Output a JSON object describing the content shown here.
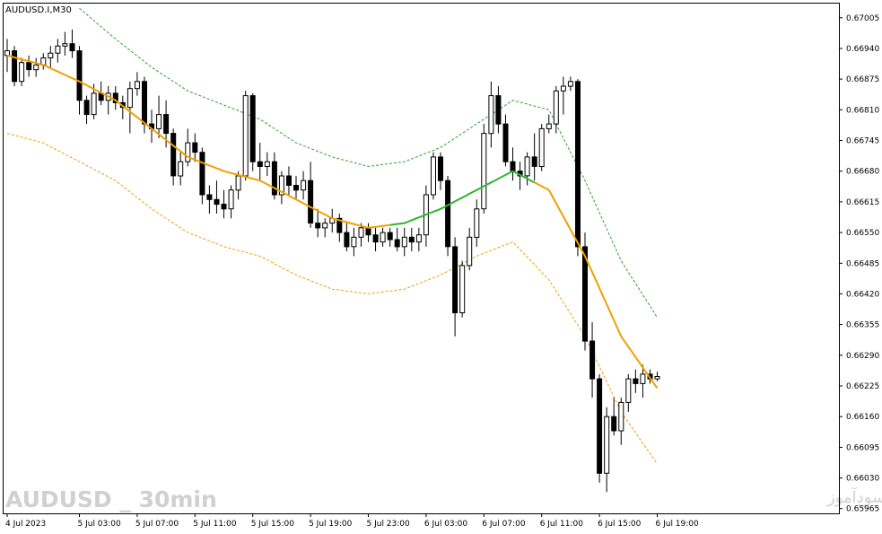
{
  "chart_data": {
    "type": "candlestick",
    "title": "AUDUSD.I,M30",
    "symbol": "AUDUSD.I",
    "timeframe": "M30",
    "ylim": [
      0.65955,
      0.67035
    ],
    "grid": false,
    "y_ticks": [
      "0.67005",
      "0.66940",
      "0.66875",
      "0.66810",
      "0.66745",
      "0.66680",
      "0.66615",
      "0.66550",
      "0.66485",
      "0.66420",
      "0.66355",
      "0.66290",
      "0.66225",
      "0.66160",
      "0.66095",
      "0.66030",
      "0.65965"
    ],
    "x_ticks": [
      {
        "label": "4 Jul 2023",
        "index": 0
      },
      {
        "label": "5 Jul 03:00",
        "index": 10
      },
      {
        "label": "5 Jul 07:00",
        "index": 18
      },
      {
        "label": "5 Jul 11:00",
        "index": 26
      },
      {
        "label": "5 Jul 15:00",
        "index": 34
      },
      {
        "label": "5 Jul 19:00",
        "index": 42
      },
      {
        "label": "5 Jul 23:00",
        "index": 50
      },
      {
        "label": "6 Jul 03:00",
        "index": 58
      },
      {
        "label": "6 Jul 07:00",
        "index": 66
      },
      {
        "label": "6 Jul 11:00",
        "index": 74
      },
      {
        "label": "6 Jul 15:00",
        "index": 82
      },
      {
        "label": "6 Jul 19:00",
        "index": 90
      }
    ],
    "candles": [
      [
        0.66925,
        0.6696,
        0.6689,
        0.66935
      ],
      [
        0.66935,
        0.66945,
        0.6686,
        0.6687
      ],
      [
        0.6687,
        0.6692,
        0.6686,
        0.6691
      ],
      [
        0.6691,
        0.66925,
        0.6688,
        0.66895
      ],
      [
        0.66895,
        0.6692,
        0.6688,
        0.66905
      ],
      [
        0.66905,
        0.6693,
        0.66895,
        0.6692
      ],
      [
        0.6692,
        0.66945,
        0.669,
        0.6693
      ],
      [
        0.6693,
        0.6696,
        0.6691,
        0.66945
      ],
      [
        0.66945,
        0.66975,
        0.66925,
        0.6695
      ],
      [
        0.6695,
        0.6698,
        0.6692,
        0.66935
      ],
      [
        0.66935,
        0.66945,
        0.668,
        0.6683
      ],
      [
        0.6683,
        0.6684,
        0.6678,
        0.668
      ],
      [
        0.668,
        0.66865,
        0.6679,
        0.66845
      ],
      [
        0.66845,
        0.6687,
        0.6682,
        0.6683
      ],
      [
        0.6683,
        0.6686,
        0.668,
        0.66845
      ],
      [
        0.66845,
        0.6686,
        0.6681,
        0.66825
      ],
      [
        0.66825,
        0.6684,
        0.6679,
        0.66815
      ],
      [
        0.66815,
        0.6687,
        0.6676,
        0.66855
      ],
      [
        0.66855,
        0.6689,
        0.6684,
        0.6687
      ],
      [
        0.6687,
        0.6688,
        0.6676,
        0.6678
      ],
      [
        0.6678,
        0.6681,
        0.6674,
        0.6677
      ],
      [
        0.6677,
        0.6684,
        0.6675,
        0.668
      ],
      [
        0.668,
        0.6683,
        0.6673,
        0.6676
      ],
      [
        0.6676,
        0.6677,
        0.6665,
        0.6667
      ],
      [
        0.6667,
        0.6672,
        0.6665,
        0.667
      ],
      [
        0.667,
        0.6677,
        0.6669,
        0.6674
      ],
      [
        0.6674,
        0.6676,
        0.667,
        0.6672
      ],
      [
        0.6672,
        0.6673,
        0.6661,
        0.6663
      ],
      [
        0.6663,
        0.6665,
        0.6659,
        0.6662
      ],
      [
        0.6662,
        0.6666,
        0.6659,
        0.6661
      ],
      [
        0.6661,
        0.6664,
        0.6658,
        0.666
      ],
      [
        0.666,
        0.6665,
        0.6658,
        0.6664
      ],
      [
        0.6664,
        0.6668,
        0.6662,
        0.6667
      ],
      [
        0.6667,
        0.6685,
        0.6666,
        0.6684
      ],
      [
        0.6684,
        0.66845,
        0.6668,
        0.667
      ],
      [
        0.667,
        0.6674,
        0.6666,
        0.6669
      ],
      [
        0.6669,
        0.6672,
        0.6667,
        0.667
      ],
      [
        0.667,
        0.6672,
        0.6662,
        0.6663
      ],
      [
        0.6663,
        0.6668,
        0.6661,
        0.6667
      ],
      [
        0.6667,
        0.6669,
        0.6663,
        0.6665
      ],
      [
        0.6665,
        0.6667,
        0.6662,
        0.6664
      ],
      [
        0.6664,
        0.6668,
        0.6662,
        0.6666
      ],
      [
        0.6666,
        0.667,
        0.6656,
        0.6657
      ],
      [
        0.6657,
        0.666,
        0.6654,
        0.6656
      ],
      [
        0.6656,
        0.6658,
        0.6654,
        0.6657
      ],
      [
        0.6657,
        0.666,
        0.6655,
        0.6658
      ],
      [
        0.6658,
        0.6659,
        0.6653,
        0.6655
      ],
      [
        0.6655,
        0.6657,
        0.6651,
        0.6652
      ],
      [
        0.6652,
        0.6656,
        0.665,
        0.6654
      ],
      [
        0.6654,
        0.6657,
        0.6652,
        0.6656
      ],
      [
        0.6656,
        0.6657,
        0.6653,
        0.66545
      ],
      [
        0.66545,
        0.6656,
        0.6651,
        0.6653
      ],
      [
        0.6653,
        0.6656,
        0.6652,
        0.6655
      ],
      [
        0.6655,
        0.6656,
        0.6652,
        0.66535
      ],
      [
        0.66535,
        0.6656,
        0.6651,
        0.6652
      ],
      [
        0.6652,
        0.6656,
        0.665,
        0.6654
      ],
      [
        0.6654,
        0.6656,
        0.6651,
        0.6653
      ],
      [
        0.6653,
        0.6656,
        0.6651,
        0.66545
      ],
      [
        0.66545,
        0.6665,
        0.6652,
        0.6663
      ],
      [
        0.6663,
        0.6672,
        0.6662,
        0.6671
      ],
      [
        0.6671,
        0.6672,
        0.6664,
        0.6666
      ],
      [
        0.6666,
        0.6667,
        0.665,
        0.6652
      ],
      [
        0.6652,
        0.6654,
        0.6633,
        0.6638
      ],
      [
        0.6638,
        0.6649,
        0.6637,
        0.6648
      ],
      [
        0.6648,
        0.6656,
        0.6647,
        0.6654
      ],
      [
        0.6654,
        0.6662,
        0.6652,
        0.666
      ],
      [
        0.666,
        0.6678,
        0.6659,
        0.6676
      ],
      [
        0.6676,
        0.6687,
        0.6673,
        0.6684
      ],
      [
        0.6684,
        0.6686,
        0.6676,
        0.6678
      ],
      [
        0.6678,
        0.668,
        0.6669,
        0.667
      ],
      [
        0.667,
        0.6673,
        0.6666,
        0.6668
      ],
      [
        0.6668,
        0.667,
        0.6664,
        0.6667
      ],
      [
        0.6667,
        0.6672,
        0.6665,
        0.6671
      ],
      [
        0.6671,
        0.6676,
        0.6666,
        0.6669
      ],
      [
        0.6669,
        0.6678,
        0.6668,
        0.6677
      ],
      [
        0.6677,
        0.668,
        0.6676,
        0.6678
      ],
      [
        0.6678,
        0.6686,
        0.6676,
        0.6685
      ],
      [
        0.6685,
        0.6688,
        0.668,
        0.6686
      ],
      [
        0.6686,
        0.6688,
        0.6685,
        0.6687
      ],
      [
        0.6687,
        0.66875,
        0.665,
        0.6652
      ],
      [
        0.6652,
        0.6655,
        0.663,
        0.6632
      ],
      [
        0.6632,
        0.6636,
        0.662,
        0.6624
      ],
      [
        0.6624,
        0.6625,
        0.6602,
        0.6604
      ],
      [
        0.6604,
        0.6618,
        0.66,
        0.6616
      ],
      [
        0.6616,
        0.662,
        0.6612,
        0.6613
      ],
      [
        0.6613,
        0.662,
        0.661,
        0.6619
      ],
      [
        0.6619,
        0.6625,
        0.6617,
        0.6624
      ],
      [
        0.6624,
        0.6626,
        0.6621,
        0.6623
      ],
      [
        0.6623,
        0.6627,
        0.662,
        0.6625
      ],
      [
        0.6625,
        0.6626,
        0.6623,
        0.6624
      ],
      [
        0.6624,
        0.66255,
        0.66235,
        0.66245
      ]
    ],
    "ma_line": [
      [
        0,
        0.66925
      ],
      [
        5,
        0.66905
      ],
      [
        10,
        0.6687
      ],
      [
        15,
        0.6683
      ],
      [
        20,
        0.6677
      ],
      [
        25,
        0.6671
      ],
      [
        30,
        0.6668
      ],
      [
        35,
        0.6666
      ],
      [
        40,
        0.6662
      ],
      [
        45,
        0.6658
      ],
      [
        50,
        0.6656
      ],
      [
        55,
        0.6657
      ],
      [
        60,
        0.666
      ],
      [
        65,
        0.6664
      ],
      [
        70,
        0.6668
      ],
      [
        75,
        0.6664
      ],
      [
        80,
        0.665
      ],
      [
        85,
        0.6633
      ],
      [
        90,
        0.6622
      ]
    ],
    "ma_green_segment": [
      53,
      73
    ],
    "upper_band": [
      [
        10,
        0.67025
      ],
      [
        15,
        0.6696
      ],
      [
        20,
        0.669
      ],
      [
        25,
        0.6685
      ],
      [
        30,
        0.6682
      ],
      [
        35,
        0.6679
      ],
      [
        40,
        0.6674
      ],
      [
        45,
        0.6671
      ],
      [
        50,
        0.6669
      ],
      [
        55,
        0.667
      ],
      [
        60,
        0.6673
      ],
      [
        65,
        0.6678
      ],
      [
        70,
        0.6683
      ],
      [
        75,
        0.6681
      ],
      [
        80,
        0.6666
      ],
      [
        85,
        0.6649
      ],
      [
        90,
        0.6637
      ]
    ],
    "lower_band": [
      [
        0,
        0.6676
      ],
      [
        5,
        0.6674
      ],
      [
        10,
        0.667
      ],
      [
        15,
        0.6666
      ],
      [
        20,
        0.666
      ],
      [
        25,
        0.6655
      ],
      [
        30,
        0.6652
      ],
      [
        35,
        0.665
      ],
      [
        40,
        0.6646
      ],
      [
        45,
        0.6643
      ],
      [
        50,
        0.6642
      ],
      [
        55,
        0.6643
      ],
      [
        60,
        0.6646
      ],
      [
        65,
        0.665
      ],
      [
        70,
        0.6653
      ],
      [
        75,
        0.6645
      ],
      [
        80,
        0.6633
      ],
      [
        85,
        0.6617
      ],
      [
        90,
        0.6606
      ]
    ]
  },
  "colors": {
    "background": "#ffffff",
    "bull_fill": "#ffffff",
    "bear_fill": "#000000",
    "ma_orange": "#f0a000",
    "ma_green": "#2fb52f",
    "upper_band": "#2fa02f",
    "lower_band": "#f0a000",
    "watermark": "#d0d0d0"
  },
  "watermark": {
    "left": "AUDUSD _ 30min",
    "right": "انتشار در سایت سودآموز"
  }
}
